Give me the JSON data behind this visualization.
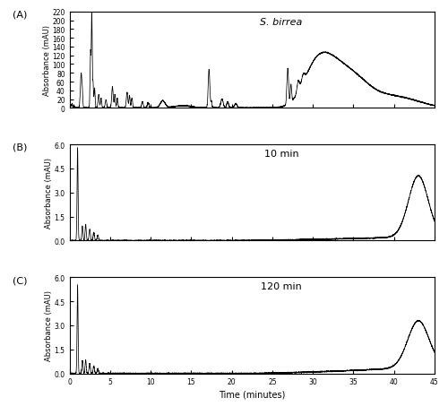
{
  "title_A": "S. birrea",
  "label_10min": "10 min",
  "label_120min": "120 min",
  "panel_labels": [
    "(A)",
    "(B)",
    "(C)"
  ],
  "xlabel": "Time (minutes)",
  "ylabel": "Absorbance (mAU)",
  "xlim": [
    0,
    45
  ],
  "ylim_A": [
    0,
    220
  ],
  "ylim_BC": [
    0,
    6.0
  ],
  "yticks_A": [
    0,
    20,
    40,
    60,
    80,
    100,
    120,
    140,
    160,
    180,
    200,
    220
  ],
  "yticks_BC": [
    0.0,
    1.5,
    3.0,
    4.5,
    6.0
  ],
  "xticks": [
    0,
    5,
    10,
    15,
    20,
    25,
    30,
    35,
    40,
    45
  ],
  "line_color": "#000000",
  "bg_color": "#ffffff"
}
